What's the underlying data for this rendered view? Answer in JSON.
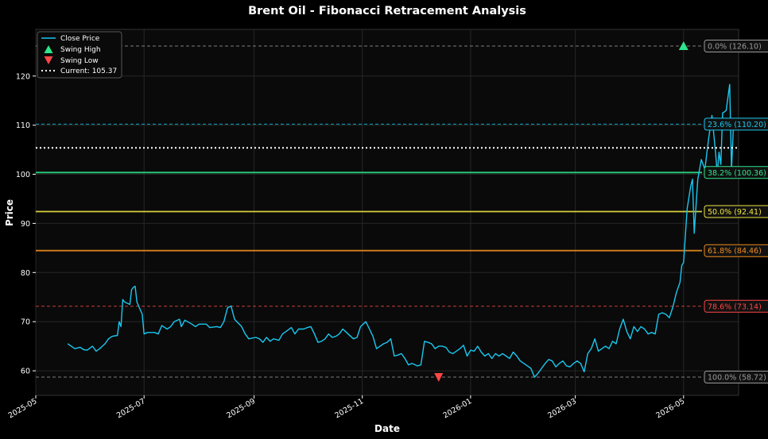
{
  "chart_data": {
    "type": "line",
    "title": "Brent Oil - Fibonacci Retracement Analysis",
    "xlabel": "Date",
    "ylabel": "Price",
    "xlim": [
      "2025-05-01",
      "2026-06-01"
    ],
    "ylim": [
      55.0,
      129.5
    ],
    "grid": true,
    "legend_placement": "top-left",
    "x_ticks": [
      "2025-05-01",
      "2025-07-01",
      "2025-09-01",
      "2025-11-01",
      "2026-01-01",
      "2026-03-01",
      "2026-05-01"
    ],
    "x_tick_labels": [
      "2025-05",
      "2025-07",
      "2025-09",
      "2025-11",
      "2026-01",
      "2026-03",
      "2026-05"
    ],
    "y_ticks": [
      60,
      70,
      80,
      90,
      100,
      110,
      120
    ],
    "colors": {
      "background": "#000000",
      "plot_background": "#0a0a0a",
      "close_line": "#19c8f0",
      "swing_high": "#2ee68c",
      "swing_low": "#ff4646",
      "current": "#ffffff"
    },
    "legend": [
      {
        "label": "Close Price",
        "kind": "line"
      },
      {
        "label": "Swing High",
        "kind": "triangle-up"
      },
      {
        "label": "Swing Low",
        "kind": "triangle-down"
      },
      {
        "label": "Current: 105.37",
        "kind": "dotted"
      }
    ],
    "series": [
      {
        "name": "Close Price",
        "points": [
          [
            "2025-05-19",
            65.5
          ],
          [
            "2025-05-21",
            65.0
          ],
          [
            "2025-05-23",
            64.5
          ],
          [
            "2025-05-26",
            64.8
          ],
          [
            "2025-05-28",
            64.3
          ],
          [
            "2025-05-30",
            64.2
          ],
          [
            "2025-06-02",
            65.0
          ],
          [
            "2025-06-04",
            64.0
          ],
          [
            "2025-06-06",
            64.5
          ],
          [
            "2025-06-09",
            65.5
          ],
          [
            "2025-06-11",
            66.5
          ],
          [
            "2025-06-13",
            67.0
          ],
          [
            "2025-06-16",
            67.2
          ],
          [
            "2025-06-17",
            70.0
          ],
          [
            "2025-06-18",
            69.0
          ],
          [
            "2025-06-19",
            74.5
          ],
          [
            "2025-06-20",
            74.0
          ],
          [
            "2025-06-23",
            73.5
          ],
          [
            "2025-06-24",
            76.5
          ],
          [
            "2025-06-25",
            77.0
          ],
          [
            "2025-06-26",
            77.2
          ],
          [
            "2025-06-27",
            74.0
          ],
          [
            "2025-06-30",
            71.5
          ],
          [
            "2025-07-01",
            67.5
          ],
          [
            "2025-07-03",
            67.8
          ],
          [
            "2025-07-07",
            67.8
          ],
          [
            "2025-07-09",
            67.5
          ],
          [
            "2025-07-11",
            69.2
          ],
          [
            "2025-07-14",
            68.5
          ],
          [
            "2025-07-16",
            69.0
          ],
          [
            "2025-07-18",
            70.0
          ],
          [
            "2025-07-21",
            70.5
          ],
          [
            "2025-07-22",
            69.0
          ],
          [
            "2025-07-24",
            70.3
          ],
          [
            "2025-07-28",
            69.5
          ],
          [
            "2025-07-30",
            69.0
          ],
          [
            "2025-08-01",
            69.5
          ],
          [
            "2025-08-05",
            69.5
          ],
          [
            "2025-08-07",
            68.8
          ],
          [
            "2025-08-11",
            69.0
          ],
          [
            "2025-08-13",
            68.8
          ],
          [
            "2025-08-15",
            70.0
          ],
          [
            "2025-08-17",
            72.8
          ],
          [
            "2025-08-19",
            73.2
          ],
          [
            "2025-08-21",
            70.5
          ],
          [
            "2025-08-25",
            69.0
          ],
          [
            "2025-08-27",
            67.5
          ],
          [
            "2025-08-29",
            66.5
          ],
          [
            "2025-09-02",
            66.8
          ],
          [
            "2025-09-04",
            66.5
          ],
          [
            "2025-09-06",
            65.8
          ],
          [
            "2025-09-08",
            66.8
          ],
          [
            "2025-09-10",
            66.0
          ],
          [
            "2025-09-12",
            66.5
          ],
          [
            "2025-09-15",
            66.2
          ],
          [
            "2025-09-17",
            67.5
          ],
          [
            "2025-09-19",
            68.0
          ],
          [
            "2025-09-22",
            68.8
          ],
          [
            "2025-09-24",
            67.5
          ],
          [
            "2025-09-26",
            68.5
          ],
          [
            "2025-09-29",
            68.5
          ],
          [
            "2025-10-01",
            68.8
          ],
          [
            "2025-10-03",
            69.0
          ],
          [
            "2025-10-05",
            67.5
          ],
          [
            "2025-10-07",
            65.8
          ],
          [
            "2025-10-09",
            66.0
          ],
          [
            "2025-10-11",
            66.5
          ],
          [
            "2025-10-13",
            67.5
          ],
          [
            "2025-10-15",
            66.8
          ],
          [
            "2025-10-17",
            67.0
          ],
          [
            "2025-10-19",
            67.5
          ],
          [
            "2025-10-21",
            68.5
          ],
          [
            "2025-10-24",
            67.5
          ],
          [
            "2025-10-27",
            66.5
          ],
          [
            "2025-10-29",
            66.8
          ],
          [
            "2025-10-31",
            69.0
          ],
          [
            "2025-11-03",
            70.0
          ],
          [
            "2025-11-05",
            68.5
          ],
          [
            "2025-11-07",
            67.0
          ],
          [
            "2025-11-09",
            64.5
          ],
          [
            "2025-11-11",
            65.0
          ],
          [
            "2025-11-13",
            65.5
          ],
          [
            "2025-11-15",
            65.8
          ],
          [
            "2025-11-17",
            66.5
          ],
          [
            "2025-11-19",
            63.0
          ],
          [
            "2025-11-21",
            63.2
          ],
          [
            "2025-11-23",
            63.5
          ],
          [
            "2025-11-25",
            62.5
          ],
          [
            "2025-11-27",
            61.2
          ],
          [
            "2025-11-29",
            61.5
          ],
          [
            "2025-12-02",
            61.0
          ],
          [
            "2025-12-04",
            61.2
          ],
          [
            "2025-12-06",
            66.0
          ],
          [
            "2025-12-08",
            65.8
          ],
          [
            "2025-12-10",
            65.5
          ],
          [
            "2025-12-12",
            64.5
          ],
          [
            "2025-12-14",
            65.0
          ],
          [
            "2025-12-16",
            65.0
          ],
          [
            "2025-12-18",
            64.8
          ],
          [
            "2025-12-20",
            63.8
          ],
          [
            "2025-12-22",
            63.5
          ],
          [
            "2025-12-24",
            64.0
          ],
          [
            "2025-12-26",
            64.5
          ],
          [
            "2025-12-28",
            65.2
          ],
          [
            "2025-12-30",
            63.0
          ],
          [
            "2026-01-01",
            64.2
          ],
          [
            "2026-01-03",
            64.0
          ],
          [
            "2026-01-05",
            65.0
          ],
          [
            "2026-01-07",
            63.8
          ],
          [
            "2026-01-09",
            63.0
          ],
          [
            "2026-01-11",
            63.5
          ],
          [
            "2026-01-13",
            62.5
          ],
          [
            "2026-01-15",
            63.5
          ],
          [
            "2026-01-17",
            63.0
          ],
          [
            "2026-01-19",
            63.5
          ],
          [
            "2026-01-21",
            63.0
          ],
          [
            "2026-01-23",
            62.5
          ],
          [
            "2026-01-25",
            63.8
          ],
          [
            "2026-01-27",
            63.0
          ],
          [
            "2026-01-29",
            62.0
          ],
          [
            "2026-01-31",
            61.5
          ],
          [
            "2026-02-02",
            61.0
          ],
          [
            "2026-02-04",
            60.5
          ],
          [
            "2026-02-06",
            58.7
          ],
          [
            "2026-02-08",
            59.5
          ],
          [
            "2026-02-10",
            60.5
          ],
          [
            "2026-02-12",
            61.5
          ],
          [
            "2026-02-14",
            62.3
          ],
          [
            "2026-02-16",
            62.0
          ],
          [
            "2026-02-18",
            60.8
          ],
          [
            "2026-02-20",
            61.5
          ],
          [
            "2026-02-22",
            62.0
          ],
          [
            "2026-02-24",
            61.0
          ],
          [
            "2026-02-26",
            60.8
          ],
          [
            "2026-02-28",
            61.5
          ],
          [
            "2026-03-02",
            62.0
          ],
          [
            "2026-03-04",
            61.5
          ],
          [
            "2026-03-06",
            59.8
          ],
          [
            "2026-03-08",
            63.5
          ],
          [
            "2026-03-10",
            64.5
          ],
          [
            "2026-03-12",
            66.5
          ],
          [
            "2026-03-14",
            64.0
          ],
          [
            "2026-03-16",
            64.5
          ],
          [
            "2026-03-18",
            65.0
          ],
          [
            "2026-03-20",
            64.5
          ],
          [
            "2026-03-22",
            66.0
          ],
          [
            "2026-03-24",
            65.5
          ],
          [
            "2026-03-26",
            68.5
          ],
          [
            "2026-03-28",
            70.5
          ],
          [
            "2026-03-30",
            68.0
          ],
          [
            "2026-04-01",
            66.5
          ],
          [
            "2026-04-03",
            69.0
          ],
          [
            "2026-04-05",
            68.0
          ],
          [
            "2026-04-07",
            69.0
          ],
          [
            "2026-04-09",
            68.5
          ],
          [
            "2026-04-11",
            67.5
          ],
          [
            "2026-04-13",
            67.8
          ],
          [
            "2026-04-15",
            67.5
          ],
          [
            "2026-04-17",
            71.5
          ],
          [
            "2026-04-19",
            71.8
          ],
          [
            "2026-04-21",
            71.5
          ],
          [
            "2026-04-23",
            70.8
          ],
          [
            "2026-04-25",
            73.0
          ],
          [
            "2026-04-27",
            76.0
          ],
          [
            "2026-04-29",
            78.0
          ],
          [
            "2026-04-30",
            81.5
          ],
          [
            "2026-05-01",
            82.0
          ],
          [
            "2026-05-03",
            93.0
          ],
          [
            "2026-05-05",
            97.5
          ],
          [
            "2026-05-06",
            99.0
          ],
          [
            "2026-05-07",
            88.0
          ],
          [
            "2026-05-09",
            99.0
          ],
          [
            "2026-05-11",
            103.0
          ],
          [
            "2026-05-13",
            101.0
          ],
          [
            "2026-05-15",
            107.0
          ],
          [
            "2026-05-17",
            112.0
          ],
          [
            "2026-05-19",
            104.5
          ],
          [
            "2026-05-20",
            100.0
          ],
          [
            "2026-05-21",
            104.5
          ],
          [
            "2026-05-22",
            102.0
          ],
          [
            "2026-05-23",
            112.5
          ],
          [
            "2026-05-24",
            112.7
          ],
          [
            "2026-05-25",
            113.0
          ],
          [
            "2026-05-27",
            118.3
          ],
          [
            "2026-05-28",
            101.0
          ],
          [
            "2026-05-29",
            109.0
          ],
          [
            "2026-05-31",
            109.5
          ]
        ]
      }
    ],
    "swing_high": {
      "x": "2026-05-01",
      "y": 126.1
    },
    "swing_low": {
      "x": "2025-12-14",
      "y": 58.72
    },
    "current": {
      "label": "Current: 105.37",
      "y": 105.37
    },
    "fib_levels": [
      {
        "ratio": "0.0%",
        "value": 126.1,
        "label": "0.0% (126.10)",
        "color": "#9a9a9a",
        "style": "dashed"
      },
      {
        "ratio": "23.6%",
        "value": 110.2,
        "label": "23.6% (110.20)",
        "color": "#19c8f0",
        "style": "dashed"
      },
      {
        "ratio": "38.2%",
        "value": 100.36,
        "label": "38.2% (100.36)",
        "color": "#2ee68c",
        "style": "solid"
      },
      {
        "ratio": "50.0%",
        "value": 92.41,
        "label": "50.0% (92.41)",
        "color": "#f0e641",
        "style": "solid"
      },
      {
        "ratio": "61.8%",
        "value": 84.46,
        "label": "61.8% (84.46)",
        "color": "#f08c1e",
        "style": "solid"
      },
      {
        "ratio": "78.6%",
        "value": 73.14,
        "label": "78.6% (73.14)",
        "color": "#ff4646",
        "style": "dashed"
      },
      {
        "ratio": "100.0%",
        "value": 58.72,
        "label": "100.0% (58.72)",
        "color": "#9a9a9a",
        "style": "dashed"
      }
    ]
  }
}
